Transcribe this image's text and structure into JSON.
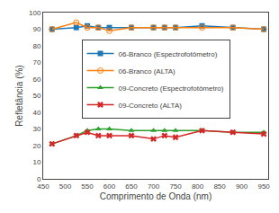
{
  "chart_data": {
    "type": "line",
    "xlabel": "Comprimento de Onda (nm)",
    "ylabel": "Refletância (%)",
    "x": [
      470,
      525,
      550,
      575,
      600,
      650,
      700,
      725,
      750,
      810,
      880,
      950
    ],
    "series": [
      {
        "name": "06-Branco (Espectrofotômetro)",
        "values": [
          90,
          91,
          92,
          91,
          91,
          91,
          91,
          91,
          91,
          92,
          91,
          90
        ],
        "marker": "square",
        "line_style": "solid"
      },
      {
        "name": "06-Branco (ALTA)",
        "values": [
          90,
          94,
          91,
          91,
          89,
          91,
          91,
          91,
          91,
          91,
          91,
          90
        ],
        "marker": "circle-open",
        "line_style": "solid"
      },
      {
        "name": "09-Concreto (Espectrofotômetro)",
        "values": [
          21,
          26,
          29,
          30,
          30,
          29,
          29,
          29,
          29,
          29,
          28,
          28
        ],
        "marker": "triangle-up",
        "line_style": "solid"
      },
      {
        "name": "09-Concreto (ALTA)",
        "values": [
          21,
          26,
          28,
          26,
          26,
          26,
          24,
          26,
          25,
          29,
          28,
          27
        ],
        "marker": "x",
        "line_style": "solid"
      }
    ],
    "xlim": [
      450,
      960
    ],
    "ylim": [
      0,
      100
    ],
    "xticks": [
      450,
      500,
      550,
      600,
      650,
      700,
      750,
      800,
      850,
      900,
      950
    ],
    "yticks": [
      0,
      10,
      20,
      30,
      40,
      50,
      60,
      70,
      80,
      90,
      100
    ],
    "grid": false,
    "legend": "center"
  }
}
